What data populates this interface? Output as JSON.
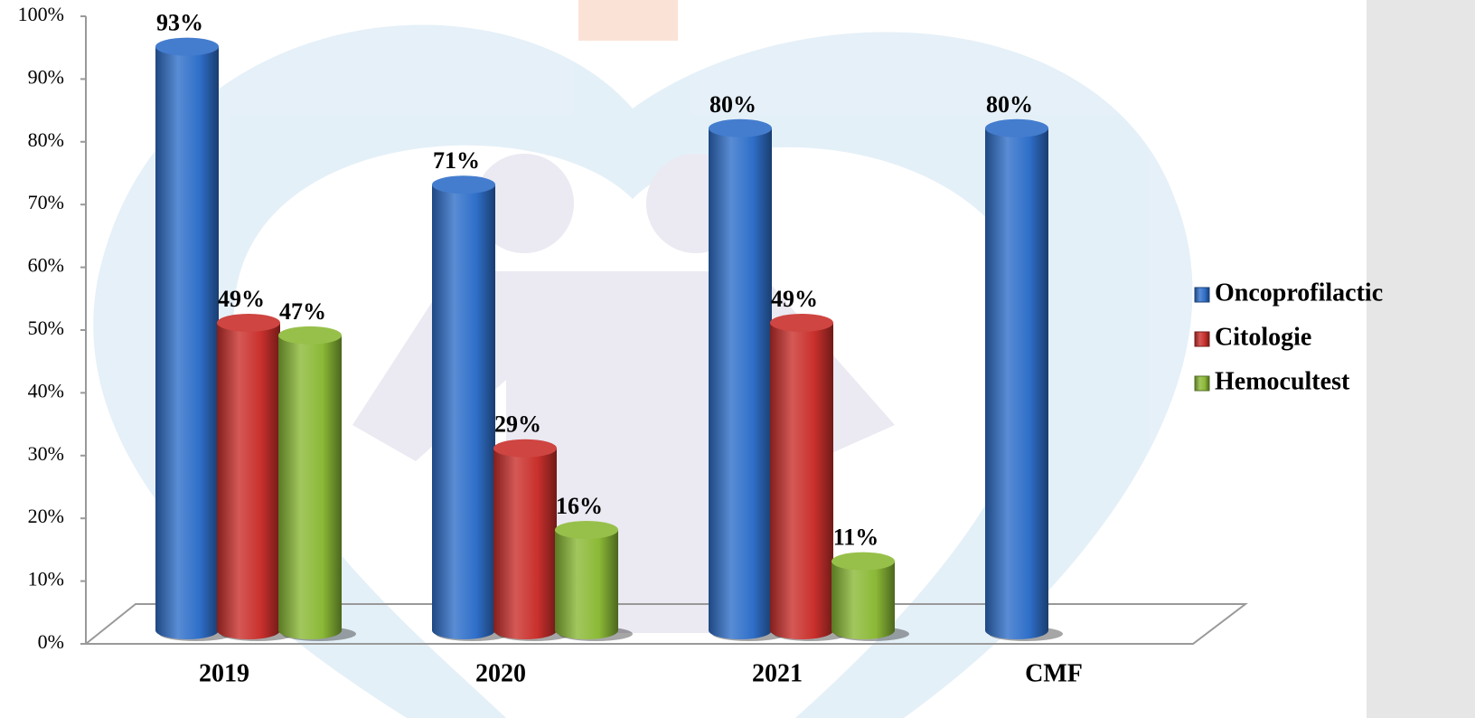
{
  "chart_data": {
    "type": "bar3d",
    "categories": [
      "2019",
      "2020",
      "2021",
      "CMF"
    ],
    "series": [
      {
        "name": "Oncoprofilactic",
        "color": "#2f6fc9",
        "values": [
          93,
          71,
          80,
          80
        ],
        "value_labels": [
          "93%",
          "71%",
          "80%",
          "80%"
        ]
      },
      {
        "name": "Citologie",
        "color": "#c9302c",
        "values": [
          49,
          29,
          49,
          null
        ],
        "value_labels": [
          "49%",
          "29%",
          "49%",
          null
        ]
      },
      {
        "name": "Hemocultest",
        "color": "#8bb936",
        "values": [
          47,
          16,
          11,
          null
        ],
        "value_labels": [
          "47%",
          "16%",
          "11%",
          null
        ]
      }
    ],
    "ylim": [
      0,
      100
    ],
    "yticks": [
      {
        "value": 0,
        "label": "0%"
      },
      {
        "value": 10,
        "label": "10%"
      },
      {
        "value": 20,
        "label": "20%"
      },
      {
        "value": 30,
        "label": "30%"
      },
      {
        "value": 40,
        "label": "40%"
      },
      {
        "value": 50,
        "label": "50%"
      },
      {
        "value": 60,
        "label": "60%"
      },
      {
        "value": 70,
        "label": "70%"
      },
      {
        "value": 80,
        "label": "80%"
      },
      {
        "value": 90,
        "label": "90%"
      },
      {
        "value": 100,
        "label": "100%"
      }
    ],
    "grid": false,
    "legend": "right"
  }
}
